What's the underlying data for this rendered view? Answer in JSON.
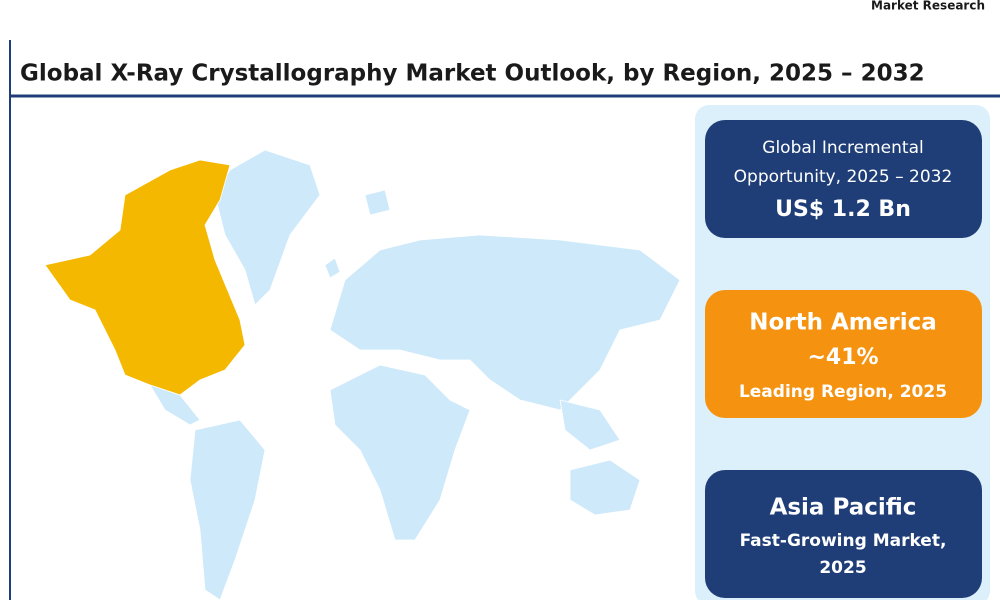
{
  "header": {
    "brand": "Market Research",
    "title": "Global X-Ray Crystallography Market Outlook, by Region, 2025 – 2032"
  },
  "cards": [
    {
      "lines": [
        "Global Incremental",
        "Opportunity, 2025 – 2032",
        "US$ 1.2 Bn"
      ]
    },
    {
      "lines": [
        "North America",
        "~41%",
        "Leading Region, 2025"
      ]
    },
    {
      "lines": [
        "Asia Pacific",
        "Fast-Growing Market,",
        "2025"
      ]
    }
  ]
}
